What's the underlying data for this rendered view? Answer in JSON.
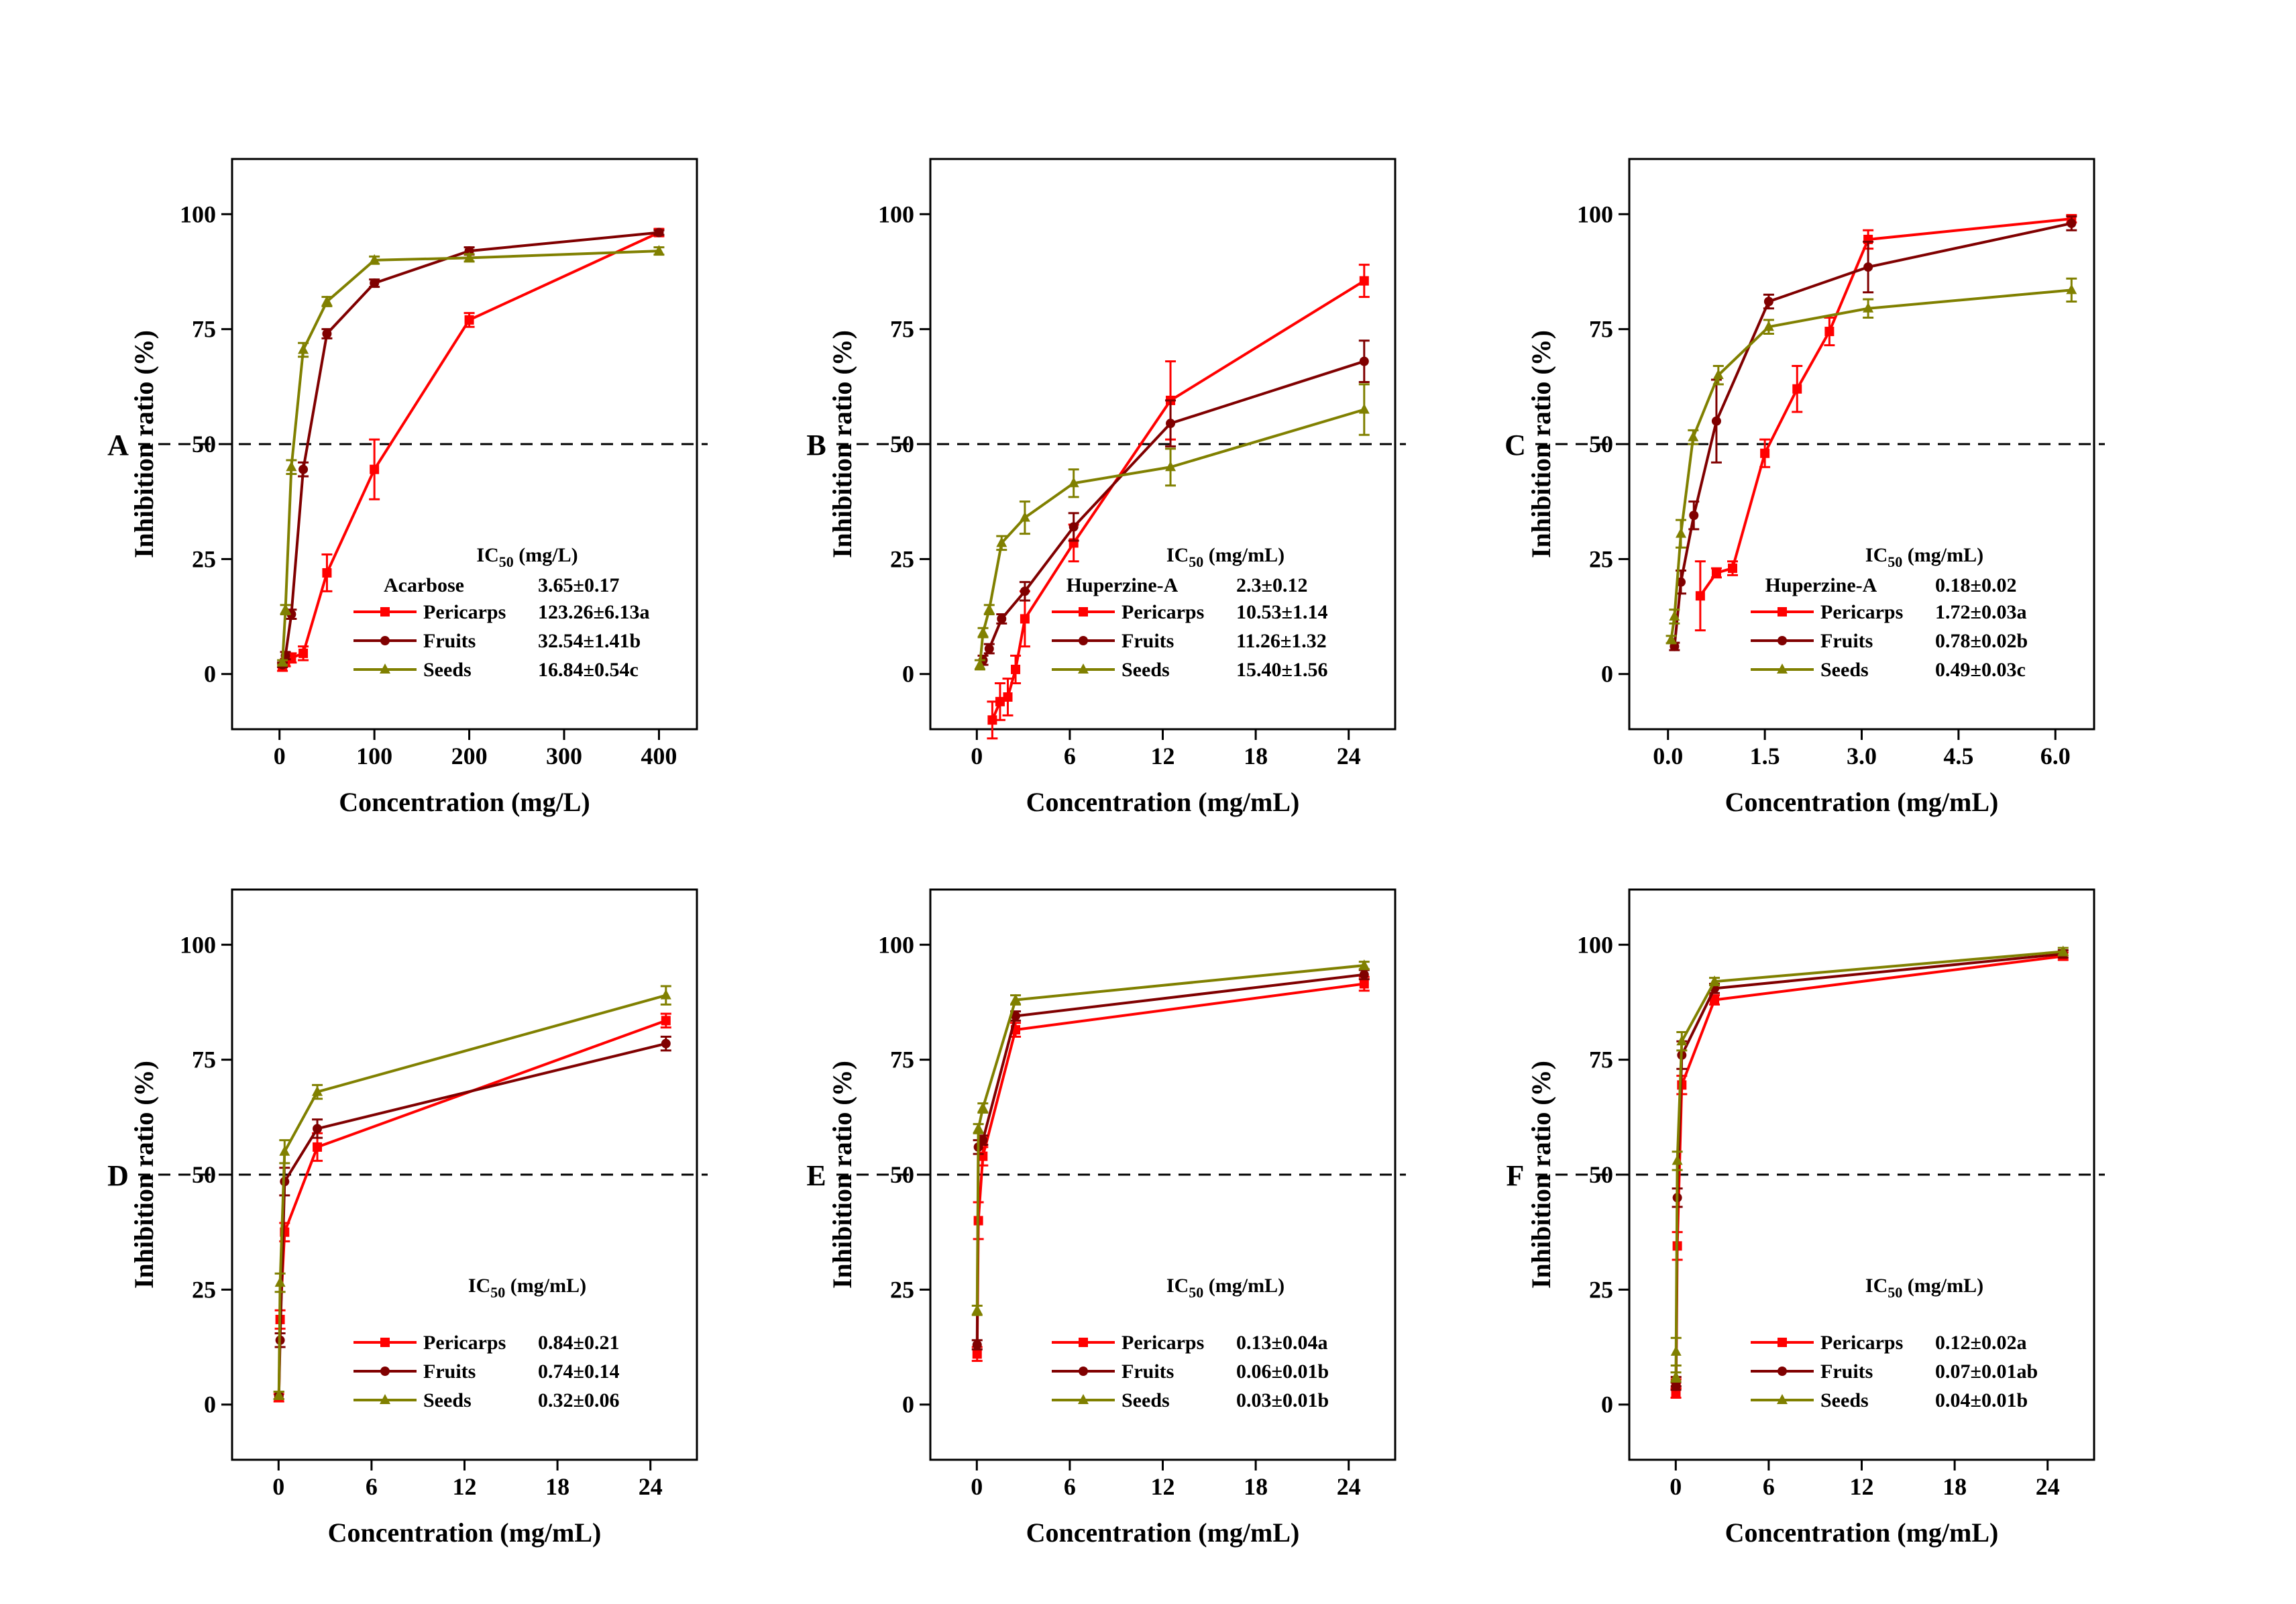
{
  "colors": {
    "Pericarps": "#ff0000",
    "Fruits": "#800000",
    "Seeds": "#808000"
  },
  "markers": {
    "Pericarps": "square",
    "Fruits": "circle",
    "Seeds": "triangle"
  },
  "chart_data": [
    {
      "type": "line",
      "panel": "A",
      "xlabel": "Concentration (mg/L)",
      "ylabel": "Inhibition ratio (%)",
      "xlim": [
        -50,
        440
      ],
      "ylim": [
        -12,
        112
      ],
      "xticks": [
        0,
        100,
        200,
        300,
        400
      ],
      "xtick_labels": [
        "0",
        "100",
        "200",
        "300",
        "400"
      ],
      "yticks": [
        0,
        25,
        50,
        75,
        100
      ],
      "reference_line_y": 50,
      "legend_title": "IC50 (mg/L)",
      "legend_header": {
        "label": "Acarbose",
        "value": "3.65±0.17"
      },
      "legend_entries": [
        {
          "name": "Pericarps",
          "value": "123.26±6.13a"
        },
        {
          "name": "Fruits",
          "value": "32.54±1.41b"
        },
        {
          "name": "Seeds",
          "value": "16.84±0.54c"
        }
      ],
      "series": [
        {
          "name": "Pericarps",
          "x": [
            3.1,
            6.25,
            12.5,
            25,
            50,
            100,
            200,
            400
          ],
          "y": [
            1.5,
            2.5,
            3.5,
            4.5,
            22,
            44.5,
            77,
            96
          ],
          "err": [
            0.8,
            0.8,
            1,
            1.5,
            4,
            6.5,
            1.5,
            0.8
          ]
        },
        {
          "name": "Fruits",
          "x": [
            3.1,
            6.25,
            12.5,
            25,
            50,
            100,
            200,
            400
          ],
          "y": [
            2,
            4,
            13,
            44.5,
            74,
            85,
            92,
            96
          ],
          "err": [
            0.5,
            0.8,
            1,
            1.5,
            1,
            0.8,
            0.8,
            0.5
          ]
        },
        {
          "name": "Seeds",
          "x": [
            3.1,
            6.25,
            12.5,
            25,
            50,
            100,
            200,
            400
          ],
          "y": [
            2.5,
            14,
            45,
            70.5,
            81,
            90,
            90.5,
            92
          ],
          "err": [
            0.5,
            1,
            1.5,
            1.5,
            1,
            0.8,
            0.8,
            0.8
          ]
        }
      ]
    },
    {
      "type": "line",
      "panel": "B",
      "xlabel": "Concentration (mg/mL)",
      "ylabel": "Inhibition ratio (%)",
      "xlim": [
        -3,
        27
      ],
      "ylim": [
        -12,
        112
      ],
      "xticks": [
        0,
        6,
        12,
        18,
        24
      ],
      "xtick_labels": [
        "0",
        "6",
        "12",
        "18",
        "24"
      ],
      "yticks": [
        0,
        25,
        50,
        75,
        100
      ],
      "reference_line_y": 50,
      "legend_title": "IC50 (mg/mL)",
      "legend_header": {
        "label": "Huperzine-A",
        "value": "2.3±0.12"
      },
      "legend_entries": [
        {
          "name": "Pericarps",
          "value": "10.53±1.14"
        },
        {
          "name": "Fruits",
          "value": "11.26±1.32"
        },
        {
          "name": "Seeds",
          "value": "15.40±1.56"
        }
      ],
      "series": [
        {
          "name": "Pericarps",
          "x": [
            1.0,
            1.5,
            2.0,
            2.5,
            3.1,
            6.25,
            12.5,
            25
          ],
          "y": [
            -10,
            -6,
            -5,
            1,
            12,
            28.5,
            59.5,
            85.5
          ],
          "err": [
            4,
            4,
            4,
            3,
            6,
            4,
            8.5,
            3.5
          ]
        },
        {
          "name": "Fruits",
          "x": [
            0.4,
            0.8,
            1.6,
            3.1,
            6.25,
            12.5,
            25
          ],
          "y": [
            3,
            5.5,
            12,
            18,
            32,
            54.5,
            68
          ],
          "err": [
            1,
            1,
            1,
            2,
            3,
            5,
            4.5
          ]
        },
        {
          "name": "Seeds",
          "x": [
            0.2,
            0.4,
            0.8,
            1.6,
            3.1,
            6.25,
            12.5,
            25
          ],
          "y": [
            2,
            9,
            14,
            28.5,
            34,
            41.5,
            45,
            57.5
          ],
          "err": [
            1,
            1,
            1,
            1.5,
            3.5,
            3,
            4,
            5.5
          ]
        }
      ]
    },
    {
      "type": "line",
      "panel": "C",
      "xlabel": "Concentration (mg/mL)",
      "ylabel": "Inhibition ratio (%)",
      "xlim": [
        -0.6,
        6.6
      ],
      "ylim": [
        -12,
        112
      ],
      "xticks": [
        0,
        1.5,
        3.0,
        4.5,
        6.0
      ],
      "xtick_labels": [
        "0.0",
        "1.5",
        "3.0",
        "4.5",
        "6.0"
      ],
      "yticks": [
        0,
        25,
        50,
        75,
        100
      ],
      "reference_line_y": 50,
      "legend_title": "IC50 (mg/mL)",
      "legend_header": {
        "label": "Huperzine-A",
        "value": "0.18±0.02"
      },
      "legend_entries": [
        {
          "name": "Pericarps",
          "value": "1.72±0.03a"
        },
        {
          "name": "Fruits",
          "value": "0.78±0.02b"
        },
        {
          "name": "Seeds",
          "value": "0.49±0.03c"
        }
      ],
      "series": [
        {
          "name": "Pericarps",
          "x": [
            0.5,
            0.75,
            1.0,
            1.5,
            2.0,
            2.5,
            3.1,
            6.25
          ],
          "y": [
            17,
            22,
            23,
            48,
            62,
            74.5,
            94.5,
            99
          ],
          "err": [
            7.5,
            1,
            1.5,
            3,
            5,
            3,
            2,
            0.8
          ]
        },
        {
          "name": "Fruits",
          "x": [
            0.1,
            0.2,
            0.4,
            0.75,
            1.56,
            3.1,
            6.25
          ],
          "y": [
            6,
            20,
            34.5,
            55,
            81,
            88.5,
            98
          ],
          "err": [
            0.8,
            2.5,
            3,
            9,
            1.5,
            5.5,
            1.5
          ]
        },
        {
          "name": "Seeds",
          "x": [
            0.05,
            0.1,
            0.2,
            0.39,
            0.78,
            1.56,
            3.1,
            6.25
          ],
          "y": [
            7.5,
            12.5,
            30.5,
            51.5,
            65,
            75.5,
            79.5,
            83.5
          ],
          "err": [
            0.8,
            1.5,
            3,
            1.5,
            2,
            1.5,
            2,
            2.5
          ]
        }
      ]
    },
    {
      "type": "line",
      "panel": "D",
      "xlabel": "Concentration (mg/mL)",
      "ylabel": "Inhibition ratio (%)",
      "xlim": [
        -3,
        27
      ],
      "ylim": [
        -12,
        112
      ],
      "xticks": [
        0,
        6,
        12,
        18,
        24
      ],
      "xtick_labels": [
        "0",
        "6",
        "12",
        "18",
        "24"
      ],
      "yticks": [
        0,
        25,
        50,
        75,
        100
      ],
      "reference_line_y": 50,
      "legend_title": "IC50 (mg/mL)",
      "legend_entries": [
        {
          "name": "Pericarps",
          "value": "0.84±0.21"
        },
        {
          "name": "Fruits",
          "value": "0.74±0.14"
        },
        {
          "name": "Seeds",
          "value": "0.32±0.06"
        }
      ],
      "series": [
        {
          "name": "Pericarps",
          "x": [
            0.02,
            0.1,
            0.39,
            2.5,
            25
          ],
          "y": [
            1.5,
            18.5,
            37.5,
            56,
            83.5
          ],
          "err": [
            0.8,
            2,
            2,
            3,
            1.5
          ]
        },
        {
          "name": "Fruits",
          "x": [
            0.02,
            0.1,
            0.39,
            2.5,
            25
          ],
          "y": [
            2,
            14,
            48.5,
            60,
            78.5
          ],
          "err": [
            0.8,
            1.5,
            3,
            2,
            1.5
          ]
        },
        {
          "name": "Seeds",
          "x": [
            0.02,
            0.1,
            0.39,
            2.5,
            25
          ],
          "y": [
            2,
            26.5,
            55,
            68,
            89
          ],
          "err": [
            0.8,
            2,
            2.5,
            1.5,
            2
          ]
        }
      ]
    },
    {
      "type": "line",
      "panel": "E",
      "xlabel": "Concentration (mg/mL)",
      "ylabel": "Inhibition ratio (%)",
      "xlim": [
        -3,
        27
      ],
      "ylim": [
        -12,
        112
      ],
      "xticks": [
        0,
        6,
        12,
        18,
        24
      ],
      "xtick_labels": [
        "0",
        "6",
        "12",
        "18",
        "24"
      ],
      "yticks": [
        0,
        25,
        50,
        75,
        100
      ],
      "reference_line_y": 50,
      "legend_title": "IC50 (mg/mL)",
      "legend_entries": [
        {
          "name": "Pericarps",
          "value": "0.13±0.04a"
        },
        {
          "name": "Fruits",
          "value": "0.06±0.01b"
        },
        {
          "name": "Seeds",
          "value": "0.03±0.01b"
        }
      ],
      "series": [
        {
          "name": "Pericarps",
          "x": [
            0.02,
            0.1,
            0.39,
            2.5,
            25
          ],
          "y": [
            11,
            40,
            54,
            81.5,
            91.5
          ],
          "err": [
            1.5,
            4,
            2,
            1.5,
            1.5
          ]
        },
        {
          "name": "Fruits",
          "x": [
            0.02,
            0.1,
            0.39,
            2.5,
            25
          ],
          "y": [
            13,
            56,
            57.5,
            84.5,
            93.5
          ],
          "err": [
            1,
            1.5,
            1,
            1,
            1
          ]
        },
        {
          "name": "Seeds",
          "x": [
            0.02,
            0.1,
            0.39,
            2.5,
            25
          ],
          "y": [
            20.5,
            60,
            64.5,
            88,
            95.5
          ],
          "err": [
            1,
            1,
            1,
            1,
            0.8
          ]
        }
      ]
    },
    {
      "type": "line",
      "panel": "F",
      "xlabel": "Concentration (mg/mL)",
      "ylabel": "Inhibition ratio (%)",
      "xlim": [
        -3,
        27
      ],
      "ylim": [
        -12,
        112
      ],
      "xticks": [
        0,
        6,
        12,
        18,
        24
      ],
      "xtick_labels": [
        "0",
        "6",
        "12",
        "18",
        "24"
      ],
      "yticks": [
        0,
        25,
        50,
        75,
        100
      ],
      "reference_line_y": 50,
      "legend_title": "IC50 (mg/mL)",
      "legend_entries": [
        {
          "name": "Pericarps",
          "value": "0.12±0.02a"
        },
        {
          "name": "Fruits",
          "value": "0.07±0.01ab"
        },
        {
          "name": "Seeds",
          "value": "0.04±0.01b"
        }
      ],
      "series": [
        {
          "name": "Pericarps",
          "x": [
            0.01,
            0.02,
            0.1,
            0.39,
            2.5,
            25
          ],
          "y": [
            2.5,
            4.5,
            34.5,
            69.5,
            88,
            97.5
          ],
          "err": [
            1,
            1,
            3,
            2,
            1,
            0.8
          ]
        },
        {
          "name": "Fruits",
          "x": [
            0.01,
            0.02,
            0.1,
            0.39,
            2.5,
            25
          ],
          "y": [
            4,
            5,
            45,
            76,
            90.5,
            98
          ],
          "err": [
            0.8,
            1,
            2,
            3,
            1,
            0.8
          ]
        },
        {
          "name": "Seeds",
          "x": [
            0.01,
            0.02,
            0.1,
            0.39,
            2.5,
            25
          ],
          "y": [
            6,
            11.5,
            53,
            79,
            92,
            98.5
          ],
          "err": [
            1,
            3,
            2,
            2,
            0.8,
            0.8
          ]
        }
      ]
    }
  ]
}
